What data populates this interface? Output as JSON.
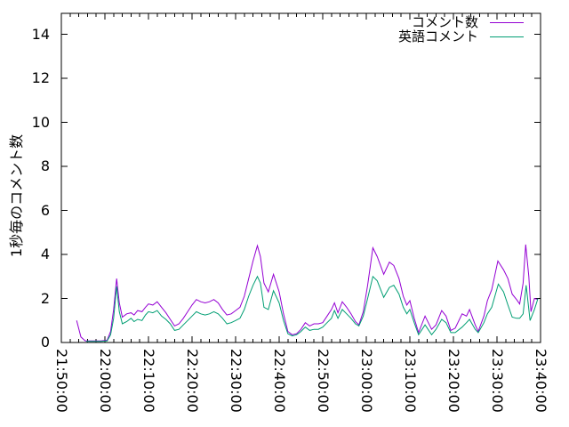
{
  "chart_data": {
    "type": "line",
    "title": "",
    "xlabel": "",
    "ylabel": "1秒毎のコメント数",
    "ylim": [
      0,
      15
    ],
    "y_ticks": [
      0,
      2,
      4,
      6,
      8,
      10,
      12,
      14
    ],
    "x_range_minutes": [
      0,
      110
    ],
    "x_start_time": "21:50:00",
    "x_tick_interval_min": 10,
    "x_minor_tick_min": 2,
    "x_ticks": [
      "21:50:00",
      "22:00:00",
      "22:10:00",
      "22:20:00",
      "22:30:00",
      "22:40:00",
      "22:50:00",
      "23:00:00",
      "23:10:00",
      "23:20:00",
      "23:30:00",
      "23:40:00"
    ],
    "grid": false,
    "legend_position": "top-right-inside",
    "background_color": "#ffffff",
    "frame_color": "#000000",
    "series": [
      {
        "name": "コメント数",
        "color": "#9400d3",
        "points": [
          [
            3.5,
            1.0
          ],
          [
            4.5,
            0.25
          ],
          [
            5.5,
            0.07
          ],
          [
            7,
            0.07
          ],
          [
            8,
            0.07
          ],
          [
            9,
            0.07
          ],
          [
            10.5,
            0.1
          ],
          [
            11.3,
            0.5
          ],
          [
            12,
            1.5
          ],
          [
            12.7,
            2.9
          ],
          [
            13.3,
            1.8
          ],
          [
            14,
            1.15
          ],
          [
            15,
            1.3
          ],
          [
            16,
            1.35
          ],
          [
            16.7,
            1.25
          ],
          [
            17.5,
            1.45
          ],
          [
            18.5,
            1.4
          ],
          [
            19.3,
            1.6
          ],
          [
            20,
            1.75
          ],
          [
            21,
            1.7
          ],
          [
            22,
            1.85
          ],
          [
            23,
            1.6
          ],
          [
            24,
            1.35
          ],
          [
            25,
            1.05
          ],
          [
            26,
            0.75
          ],
          [
            27,
            0.85
          ],
          [
            28,
            1.1
          ],
          [
            29,
            1.4
          ],
          [
            30,
            1.7
          ],
          [
            31,
            1.95
          ],
          [
            32,
            1.85
          ],
          [
            33,
            1.8
          ],
          [
            34,
            1.85
          ],
          [
            35,
            1.95
          ],
          [
            36,
            1.8
          ],
          [
            37,
            1.5
          ],
          [
            38,
            1.25
          ],
          [
            39,
            1.3
          ],
          [
            40,
            1.45
          ],
          [
            41,
            1.6
          ],
          [
            42,
            2.1
          ],
          [
            43,
            2.9
          ],
          [
            44,
            3.7
          ],
          [
            45,
            4.4
          ],
          [
            45.7,
            3.9
          ],
          [
            46.5,
            2.7
          ],
          [
            47.5,
            2.3
          ],
          [
            48.7,
            3.1
          ],
          [
            50,
            2.3
          ],
          [
            51,
            1.3
          ],
          [
            52,
            0.5
          ],
          [
            53,
            0.35
          ],
          [
            54,
            0.4
          ],
          [
            55,
            0.6
          ],
          [
            56,
            0.9
          ],
          [
            57,
            0.75
          ],
          [
            58,
            0.85
          ],
          [
            59,
            0.85
          ],
          [
            60,
            0.9
          ],
          [
            61,
            1.2
          ],
          [
            62,
            1.5
          ],
          [
            62.7,
            1.8
          ],
          [
            63.5,
            1.35
          ],
          [
            64.5,
            1.85
          ],
          [
            65.5,
            1.6
          ],
          [
            66.5,
            1.3
          ],
          [
            67.5,
            0.95
          ],
          [
            68.3,
            0.8
          ],
          [
            69.3,
            1.4
          ],
          [
            70.3,
            2.6
          ],
          [
            71.5,
            4.3
          ],
          [
            72.5,
            3.9
          ],
          [
            74,
            3.1
          ],
          [
            75.3,
            3.65
          ],
          [
            76.3,
            3.5
          ],
          [
            77.5,
            2.9
          ],
          [
            78.5,
            2.1
          ],
          [
            79.3,
            1.7
          ],
          [
            80,
            1.9
          ],
          [
            81,
            1.1
          ],
          [
            82,
            0.45
          ],
          [
            83.5,
            1.2
          ],
          [
            85,
            0.6
          ],
          [
            86,
            0.8
          ],
          [
            87.3,
            1.45
          ],
          [
            88.3,
            1.2
          ],
          [
            89.4,
            0.55
          ],
          [
            90.4,
            0.65
          ],
          [
            92,
            1.3
          ],
          [
            93,
            1.2
          ],
          [
            93.7,
            1.5
          ],
          [
            95,
            0.8
          ],
          [
            95.7,
            0.5
          ],
          [
            97,
            1.2
          ],
          [
            97.8,
            1.9
          ],
          [
            98.8,
            2.4
          ],
          [
            100.2,
            3.7
          ],
          [
            101.5,
            3.3
          ],
          [
            102.5,
            2.9
          ],
          [
            103.5,
            2.2
          ],
          [
            104.5,
            1.95
          ],
          [
            105.2,
            1.75
          ],
          [
            106,
            2.7
          ],
          [
            106.6,
            4.45
          ],
          [
            107.3,
            3.0
          ],
          [
            107.8,
            1.4
          ],
          [
            108.6,
            2.0
          ],
          [
            109.4,
            1.95
          ]
        ]
      },
      {
        "name": "英語コメント",
        "color": "#009e73",
        "points": [
          [
            5.7,
            0.05
          ],
          [
            7,
            0.05
          ],
          [
            8,
            0.05
          ],
          [
            9,
            0.05
          ],
          [
            10.5,
            0.07
          ],
          [
            11.3,
            0.35
          ],
          [
            12,
            1.1
          ],
          [
            12.7,
            2.55
          ],
          [
            13.3,
            1.4
          ],
          [
            14,
            0.85
          ],
          [
            15,
            0.95
          ],
          [
            16,
            1.1
          ],
          [
            16.7,
            0.95
          ],
          [
            17.5,
            1.05
          ],
          [
            18.5,
            1.0
          ],
          [
            19.3,
            1.25
          ],
          [
            20,
            1.4
          ],
          [
            21,
            1.35
          ],
          [
            22,
            1.45
          ],
          [
            23,
            1.2
          ],
          [
            24,
            1.05
          ],
          [
            25,
            0.85
          ],
          [
            26,
            0.55
          ],
          [
            27,
            0.6
          ],
          [
            28,
            0.8
          ],
          [
            29,
            1.0
          ],
          [
            30,
            1.2
          ],
          [
            31,
            1.4
          ],
          [
            32,
            1.3
          ],
          [
            33,
            1.25
          ],
          [
            34,
            1.3
          ],
          [
            35,
            1.4
          ],
          [
            36,
            1.3
          ],
          [
            37,
            1.1
          ],
          [
            38,
            0.85
          ],
          [
            39,
            0.9
          ],
          [
            40,
            1.0
          ],
          [
            41,
            1.1
          ],
          [
            42,
            1.5
          ],
          [
            43,
            2.1
          ],
          [
            44,
            2.6
          ],
          [
            45,
            3.0
          ],
          [
            45.7,
            2.7
          ],
          [
            46.5,
            1.6
          ],
          [
            47.5,
            1.5
          ],
          [
            48.7,
            2.35
          ],
          [
            50,
            1.8
          ],
          [
            51,
            1.0
          ],
          [
            52,
            0.4
          ],
          [
            53,
            0.3
          ],
          [
            54,
            0.35
          ],
          [
            55,
            0.5
          ],
          [
            56,
            0.7
          ],
          [
            57,
            0.55
          ],
          [
            58,
            0.6
          ],
          [
            59,
            0.6
          ],
          [
            60,
            0.7
          ],
          [
            61,
            0.9
          ],
          [
            62,
            1.1
          ],
          [
            62.7,
            1.45
          ],
          [
            63.5,
            1.1
          ],
          [
            64.5,
            1.5
          ],
          [
            65.5,
            1.3
          ],
          [
            66.5,
            1.1
          ],
          [
            67.5,
            0.85
          ],
          [
            68.3,
            0.75
          ],
          [
            69.3,
            1.2
          ],
          [
            70.3,
            2.0
          ],
          [
            71.5,
            3.0
          ],
          [
            72.5,
            2.8
          ],
          [
            74,
            2.05
          ],
          [
            75.3,
            2.5
          ],
          [
            76.3,
            2.6
          ],
          [
            77.5,
            2.2
          ],
          [
            78.5,
            1.6
          ],
          [
            79.3,
            1.3
          ],
          [
            80,
            1.5
          ],
          [
            81,
            0.9
          ],
          [
            82,
            0.35
          ],
          [
            83.5,
            0.8
          ],
          [
            85,
            0.35
          ],
          [
            86,
            0.6
          ],
          [
            87.3,
            1.05
          ],
          [
            88.3,
            0.9
          ],
          [
            89.4,
            0.45
          ],
          [
            90.4,
            0.45
          ],
          [
            92,
            0.7
          ],
          [
            93,
            0.9
          ],
          [
            93.7,
            1.05
          ],
          [
            95,
            0.6
          ],
          [
            95.7,
            0.45
          ],
          [
            97,
            0.9
          ],
          [
            97.8,
            1.3
          ],
          [
            98.8,
            1.6
          ],
          [
            100.3,
            2.65
          ],
          [
            101.5,
            2.3
          ],
          [
            102.5,
            1.7
          ],
          [
            103.5,
            1.15
          ],
          [
            104.5,
            1.1
          ],
          [
            105.2,
            1.1
          ],
          [
            106,
            1.3
          ],
          [
            106.7,
            2.6
          ],
          [
            107.6,
            1.0
          ],
          [
            108.6,
            1.5
          ],
          [
            109.4,
            2.0
          ]
        ]
      }
    ]
  }
}
